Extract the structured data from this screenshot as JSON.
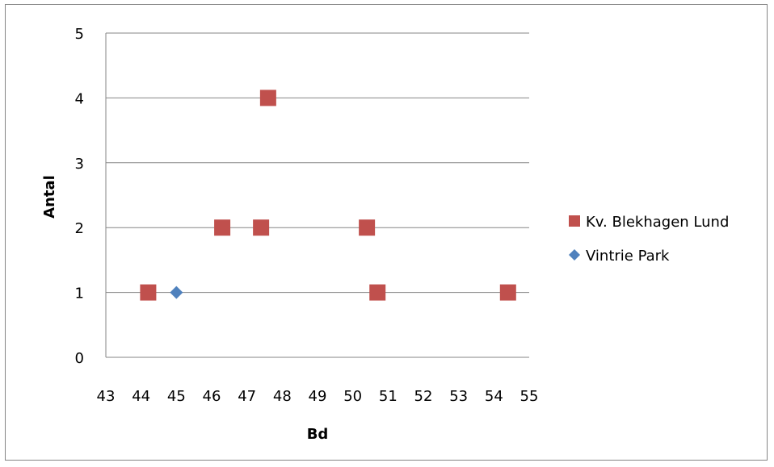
{
  "chart_data": {
    "type": "scatter",
    "xlabel": "Bd",
    "ylabel": "Antal",
    "xlim": [
      43,
      55
    ],
    "ylim": [
      0,
      5
    ],
    "xticks": [
      "43",
      "44",
      "45",
      "46",
      "47",
      "48",
      "49",
      "50",
      "51",
      "52",
      "53",
      "54",
      "55"
    ],
    "yticks": [
      "0",
      "1",
      "2",
      "3",
      "4",
      "5"
    ],
    "grid": "horizontal",
    "legend_position": "right",
    "series": [
      {
        "name": "Kv. Blekhagen Lund",
        "marker": "square",
        "color": "#C0504D",
        "points": [
          {
            "x": 44.2,
            "y": 1
          },
          {
            "x": 46.3,
            "y": 2
          },
          {
            "x": 47.4,
            "y": 2
          },
          {
            "x": 47.6,
            "y": 4
          },
          {
            "x": 50.4,
            "y": 2
          },
          {
            "x": 50.7,
            "y": 1
          },
          {
            "x": 54.4,
            "y": 1
          }
        ]
      },
      {
        "name": "Vintrie Park",
        "marker": "diamond",
        "color": "#4F81BD",
        "points": [
          {
            "x": 45.0,
            "y": 1
          }
        ]
      }
    ]
  }
}
